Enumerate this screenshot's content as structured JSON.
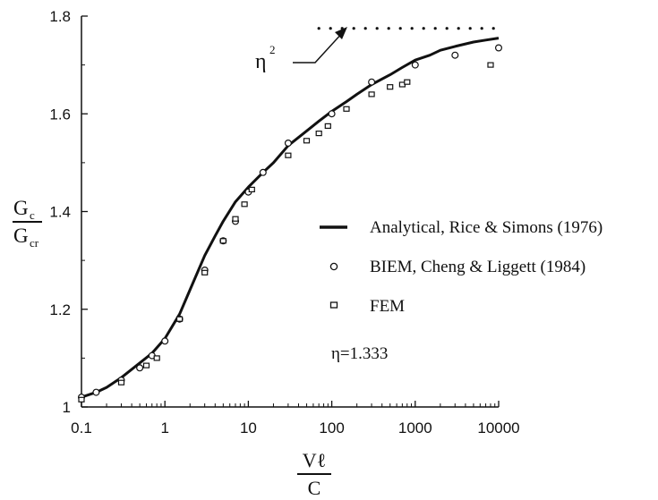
{
  "chart_data": {
    "type": "scatter",
    "x_scale": "log",
    "xlim": [
      0.1,
      10000
    ],
    "ylim": [
      1.0,
      1.8
    ],
    "x_ticks": [
      0.1,
      1,
      10,
      100,
      1000,
      10000
    ],
    "x_tick_labels": [
      "0.1",
      "1",
      "10",
      "100",
      "1000",
      "10000"
    ],
    "y_ticks": [
      1.0,
      1.2,
      1.4,
      1.6,
      1.8
    ],
    "y_tick_labels": [
      "1",
      "1.2",
      "1.4",
      "1.6",
      "1.8"
    ],
    "xlabel": {
      "numerator": "Vℓ",
      "denominator": "C"
    },
    "ylabel": {
      "numerator": "G",
      "numerator_sub": "c",
      "denominator": "G",
      "denominator_sub": "cr"
    },
    "legend_position": "center-right",
    "series": [
      {
        "name": "Analytical, Rice & Simons (1976)",
        "style": "line",
        "x": [
          0.1,
          0.15,
          0.2,
          0.3,
          0.5,
          0.7,
          1,
          1.5,
          2,
          3,
          4,
          5,
          7,
          10,
          15,
          20,
          30,
          50,
          70,
          100,
          150,
          200,
          300,
          500,
          700,
          1000,
          1500,
          2000,
          3000,
          5000,
          7000,
          10000
        ],
        "y": [
          1.02,
          1.03,
          1.04,
          1.06,
          1.09,
          1.11,
          1.14,
          1.19,
          1.24,
          1.31,
          1.35,
          1.38,
          1.42,
          1.45,
          1.48,
          1.5,
          1.535,
          1.565,
          1.585,
          1.605,
          1.625,
          1.64,
          1.66,
          1.68,
          1.695,
          1.71,
          1.72,
          1.73,
          1.738,
          1.747,
          1.751,
          1.755
        ]
      },
      {
        "name": "BIEM, Cheng & Liggett (1984)",
        "style": "circle",
        "x": [
          0.1,
          0.15,
          0.3,
          0.5,
          0.7,
          1,
          1.5,
          3,
          5,
          7,
          10,
          15,
          30,
          100,
          300,
          1000,
          3000,
          10000
        ],
        "y": [
          1.02,
          1.03,
          1.055,
          1.08,
          1.105,
          1.135,
          1.18,
          1.28,
          1.34,
          1.38,
          1.44,
          1.48,
          1.54,
          1.6,
          1.665,
          1.7,
          1.72,
          1.735
        ]
      },
      {
        "name": "FEM",
        "style": "square",
        "x": [
          0.1,
          0.3,
          0.6,
          0.8,
          1.5,
          3,
          5,
          7,
          9,
          11,
          30,
          50,
          70,
          90,
          150,
          300,
          500,
          700,
          800,
          8000
        ],
        "y": [
          1.015,
          1.05,
          1.085,
          1.1,
          1.18,
          1.275,
          1.34,
          1.385,
          1.415,
          1.445,
          1.515,
          1.545,
          1.56,
          1.575,
          1.61,
          1.64,
          1.655,
          1.66,
          1.665,
          1.7
        ]
      },
      {
        "name": "η²",
        "style": "dotted",
        "x": [
          70,
          10000
        ],
        "y": [
          1.775,
          1.775
        ]
      }
    ],
    "annotations": [
      {
        "text": "η",
        "sup": "2",
        "points_to": "η² dotted line"
      },
      {
        "text": "η=1.333"
      }
    ]
  }
}
